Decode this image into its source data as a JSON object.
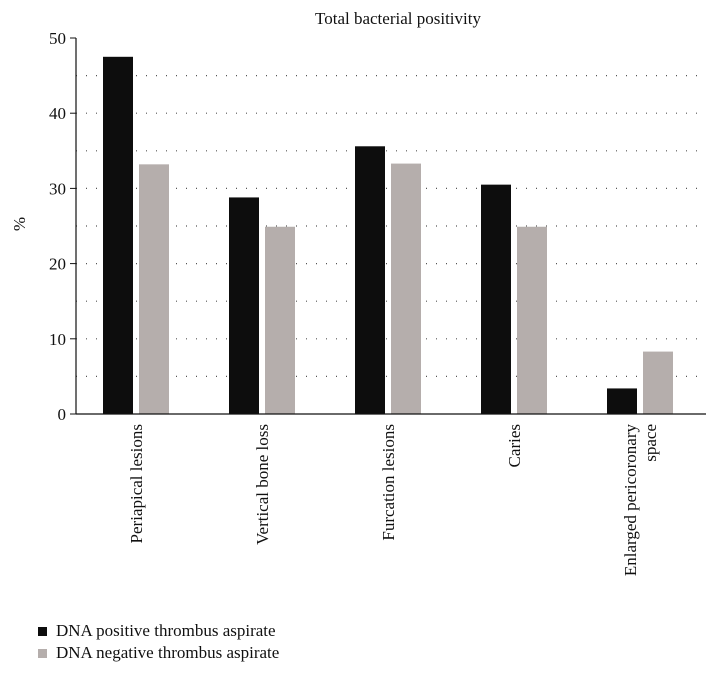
{
  "chart_data": {
    "type": "bar",
    "title": "Total bacterial positivity",
    "ylabel": "%",
    "xlabel": "",
    "ylim": [
      0,
      50
    ],
    "yticks": [
      0,
      10,
      20,
      30,
      40,
      50
    ],
    "grid": "dotted horizontal",
    "categories": [
      "Periapical lesions",
      "Vertical bone loss",
      "Furcation lesions",
      "Caries",
      "Enlarged pericoronary space"
    ],
    "category_lines": [
      [
        "Periapical lesions"
      ],
      [
        "Vertical bone loss"
      ],
      [
        "Furcation lesions"
      ],
      [
        "Caries"
      ],
      [
        "Enlarged pericoronary",
        "space"
      ]
    ],
    "series": [
      {
        "name": "DNA positive thrombus aspirate",
        "color": "#0d0d0d",
        "values": [
          47.5,
          28.8,
          35.6,
          30.5,
          3.4
        ]
      },
      {
        "name": "DNA negative thrombus aspirate",
        "color": "#b5aeac",
        "values": [
          33.2,
          24.9,
          33.3,
          24.9,
          8.3
        ]
      }
    ],
    "legend_position": "bottom-left"
  }
}
